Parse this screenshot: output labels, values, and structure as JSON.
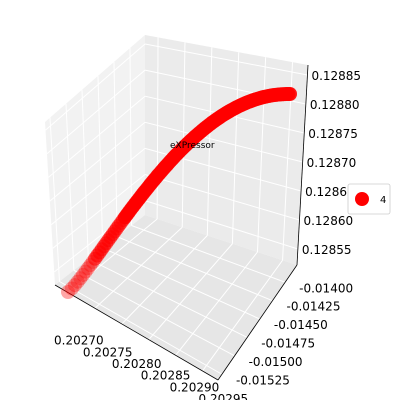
{
  "chart_data": {
    "type": "scatter",
    "projection": "3d",
    "title": "",
    "annotation": "eXPressor",
    "legend": {
      "label": "4",
      "placement": "right"
    },
    "series": [
      {
        "name": "4",
        "color": "#ff0000",
        "x_range": [
          0.20268,
          0.20296
        ],
        "y_range": [
          -0.01525,
          -0.0139
        ],
        "z_range": [
          0.128545,
          0.128855
        ]
      }
    ],
    "axes": {
      "x": {
        "ticks": [
          "0.20270",
          "0.20275",
          "0.20280",
          "0.20285",
          "0.20290",
          "0.20295"
        ]
      },
      "y": {
        "ticks": [
          "-0.01400",
          "-0.01425",
          "-0.01450",
          "-0.01475",
          "-0.01500",
          "-0.01525"
        ]
      },
      "z": {
        "ticks": [
          "0.12855",
          "0.12860",
          "0.12865",
          "0.12870",
          "0.12875",
          "0.12880",
          "0.12885"
        ]
      }
    },
    "grid": true
  }
}
